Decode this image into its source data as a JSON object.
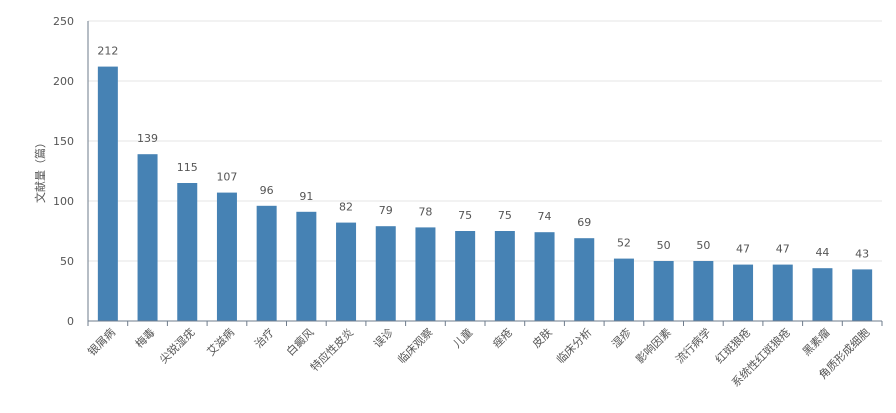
{
  "chart_data": {
    "type": "bar",
    "ylabel": "文献量（篇）",
    "xlabel": "",
    "ylim": [
      0,
      250
    ],
    "yticks": [
      0,
      50,
      100,
      150,
      200,
      250
    ],
    "grid": true,
    "categories": [
      "银屑病",
      "梅毒",
      "尖锐湿疣",
      "艾滋病",
      "治疗",
      "白癜风",
      "特应性皮炎",
      "误诊",
      "临床观察",
      "儿童",
      "痤疮",
      "皮肤",
      "临床分析",
      "湿疹",
      "影响因素",
      "流行病学",
      "红斑狼疮",
      "系统性红斑狼疮",
      "黑素瘤",
      "角质形成细胞"
    ],
    "values": [
      212,
      139,
      115,
      107,
      96,
      91,
      82,
      79,
      78,
      75,
      75,
      74,
      69,
      52,
      50,
      50,
      47,
      47,
      44,
      43
    ],
    "bar_color": "#4682b4"
  }
}
